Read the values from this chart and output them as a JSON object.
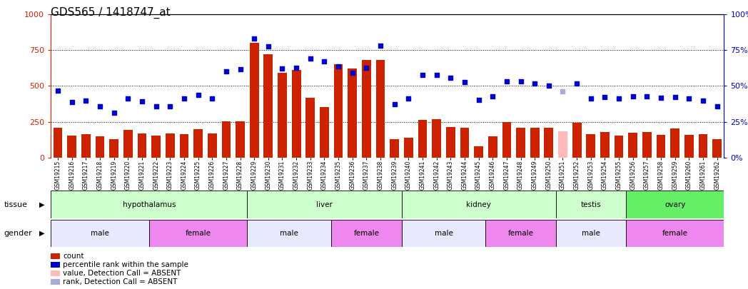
{
  "title": "GDS565 / 1418747_at",
  "samples": [
    "GSM19215",
    "GSM19216",
    "GSM19217",
    "GSM19218",
    "GSM19219",
    "GSM19220",
    "GSM19221",
    "GSM19222",
    "GSM19223",
    "GSM19224",
    "GSM19225",
    "GSM19226",
    "GSM19227",
    "GSM19228",
    "GSM19229",
    "GSM19230",
    "GSM19231",
    "GSM19232",
    "GSM19233",
    "GSM19234",
    "GSM19235",
    "GSM19236",
    "GSM19237",
    "GSM19238",
    "GSM19239",
    "GSM19240",
    "GSM19241",
    "GSM19242",
    "GSM19243",
    "GSM19244",
    "GSM19245",
    "GSM19246",
    "GSM19247",
    "GSM19248",
    "GSM19249",
    "GSM19250",
    "GSM19251",
    "GSM19252",
    "GSM19253",
    "GSM19254",
    "GSM19255",
    "GSM19256",
    "GSM19257",
    "GSM19258",
    "GSM19259",
    "GSM19260",
    "GSM19261",
    "GSM19262"
  ],
  "bar_values": [
    210,
    155,
    165,
    148,
    130,
    195,
    170,
    155,
    170,
    165,
    200,
    170,
    255,
    255,
    800,
    720,
    590,
    610,
    420,
    355,
    650,
    620,
    680,
    680,
    130,
    140,
    265,
    270,
    215,
    210,
    80,
    150,
    250,
    210,
    210,
    210,
    185,
    245,
    165,
    180,
    155,
    175,
    180,
    160,
    205,
    160,
    165,
    130
  ],
  "bar_absent": [
    false,
    false,
    false,
    false,
    false,
    false,
    false,
    false,
    false,
    false,
    false,
    false,
    false,
    false,
    false,
    false,
    false,
    false,
    false,
    false,
    false,
    false,
    false,
    false,
    false,
    false,
    false,
    false,
    false,
    false,
    false,
    false,
    false,
    false,
    false,
    false,
    true,
    false,
    false,
    false,
    false,
    false,
    false,
    false,
    false,
    false,
    false,
    false
  ],
  "dot_values": [
    47,
    39,
    40,
    36,
    31.5,
    41.5,
    39.5,
    36,
    36,
    41.5,
    44,
    41.5,
    60,
    61.5,
    83,
    77.5,
    62,
    62.5,
    69,
    67,
    63.5,
    59,
    62.5,
    78,
    37.5,
    41.5,
    57.5,
    57.5,
    55.5,
    52.5,
    40.5,
    43,
    53,
    53,
    51.5,
    50,
    46.5,
    51.5,
    41.5,
    42.5,
    41.5,
    43,
    43,
    42,
    42.5,
    41.5,
    40,
    36
  ],
  "dot_absent": [
    false,
    false,
    false,
    false,
    false,
    false,
    false,
    false,
    false,
    false,
    false,
    false,
    false,
    false,
    false,
    false,
    false,
    false,
    false,
    false,
    false,
    false,
    false,
    false,
    false,
    false,
    false,
    false,
    false,
    false,
    false,
    false,
    false,
    false,
    false,
    false,
    true,
    false,
    false,
    false,
    false,
    false,
    false,
    false,
    false,
    false,
    false,
    false
  ],
  "tissue_groups": [
    {
      "label": "hypothalamus",
      "start": 0,
      "end": 14,
      "color": "#ccffcc"
    },
    {
      "label": "liver",
      "start": 14,
      "end": 25,
      "color": "#ccffcc"
    },
    {
      "label": "kidney",
      "start": 25,
      "end": 36,
      "color": "#ccffcc"
    },
    {
      "label": "testis",
      "start": 36,
      "end": 41,
      "color": "#ccffcc"
    },
    {
      "label": "ovary",
      "start": 41,
      "end": 48,
      "color": "#66ee66"
    }
  ],
  "gender_groups": [
    {
      "label": "male",
      "start": 0,
      "end": 7,
      "color": "#e8e8ff"
    },
    {
      "label": "female",
      "start": 7,
      "end": 14,
      "color": "#ee88ee"
    },
    {
      "label": "male",
      "start": 14,
      "end": 20,
      "color": "#e8e8ff"
    },
    {
      "label": "female",
      "start": 20,
      "end": 25,
      "color": "#ee88ee"
    },
    {
      "label": "male",
      "start": 25,
      "end": 31,
      "color": "#e8e8ff"
    },
    {
      "label": "female",
      "start": 31,
      "end": 36,
      "color": "#ee88ee"
    },
    {
      "label": "male",
      "start": 36,
      "end": 41,
      "color": "#e8e8ff"
    },
    {
      "label": "female",
      "start": 41,
      "end": 48,
      "color": "#ee88ee"
    }
  ],
  "bar_color": "#cc2200",
  "bar_absent_color": "#ffbbbb",
  "dot_color": "#0000cc",
  "dot_absent_color": "#aaaadd",
  "ylim_left": [
    0,
    1000
  ],
  "ylim_right": [
    0,
    100
  ],
  "yticks_left": [
    0,
    250,
    500,
    750,
    1000
  ],
  "yticks_right": [
    0,
    25,
    50,
    75,
    100
  ],
  "background_color": "#ffffff",
  "title_fontsize": 11
}
